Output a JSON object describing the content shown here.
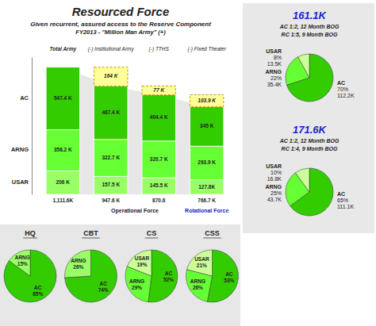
{
  "chart_data": [
    {
      "type": "bar",
      "title": "Resourced Force",
      "subtitle": [
        "Given recurrent, assured access to the Reserve Component",
        "FY2013 - \"Million Man Army\" (+)"
      ],
      "categories": [
        "Total Army",
        "(-) Institutional Army",
        "(-) TTHS",
        "(-) Fixed Theater"
      ],
      "series": [
        {
          "name": "USAR",
          "color": "#99ff66",
          "values": [
            206.0,
            157.5,
            145.5,
            127.8
          ],
          "value_labels": [
            "206 K",
            "157.5 K",
            "145.5 K",
            "127.8K"
          ]
        },
        {
          "name": "ARNG",
          "color": "#66ff33",
          "values": [
            358.2,
            322.7,
            320.7,
            293.9
          ],
          "value_labels": [
            "358.2 K",
            "322.7 K",
            "320.7 K",
            "293.9 K"
          ]
        },
        {
          "name": "AC",
          "color": "#33cc00",
          "values": [
            547.4,
            467.4,
            404.4,
            345.0
          ],
          "value_labels": [
            "547.4 K",
            "467.4 K",
            "404.4 K",
            "345 K"
          ]
        }
      ],
      "removed": [
        null,
        164,
        77,
        103.9
      ],
      "removed_labels": [
        null,
        "164 K",
        "77 K",
        "103.9 K"
      ],
      "removed_color": "#ffff99",
      "totals": [
        1111.6,
        947.6,
        870.6,
        766.7
      ],
      "total_labels": [
        "1,111.6K",
        "947.6 K",
        "870.6",
        "766.7 K"
      ],
      "annotations": [
        "Operational Force",
        "Rotational Force"
      ],
      "ylim": [
        0,
        1200
      ],
      "stacked": true,
      "data_labels": true,
      "tick_labels": false,
      "grid": false
    },
    {
      "type": "pie",
      "title": "161.1K",
      "subtitle": [
        "AC 1:2, 12 Month BOG",
        "RC 1:5, 9 Month BOG"
      ],
      "categories": [
        "AC",
        "ARNG",
        "USAR"
      ],
      "values": [
        70,
        22,
        8
      ],
      "value_labels": [
        "70%",
        "22%",
        "8%"
      ],
      "amount_labels": [
        "112.2K",
        "35.4K",
        "13.5K"
      ],
      "colors": [
        "#33cc00",
        "#66ff33",
        "#ccff99"
      ],
      "data_labels": true
    },
    {
      "type": "pie",
      "title": "171.6K",
      "subtitle": [
        "AC 1:2, 12 Month BOG",
        "RC 1:4, 9 Month BOG"
      ],
      "categories": [
        "AC",
        "ARNG",
        "USAR"
      ],
      "values": [
        65,
        25,
        10
      ],
      "value_labels": [
        "65%",
        "25%",
        "10%"
      ],
      "amount_labels": [
        "111.1K",
        "43.7K",
        "16.8K"
      ],
      "colors": [
        "#33cc00",
        "#66ff33",
        "#ccff99"
      ],
      "data_labels": true
    },
    {
      "type": "pie",
      "title": "HQ",
      "categories": [
        "AC",
        "ARNG"
      ],
      "values": [
        85,
        15
      ],
      "value_labels": [
        "85%",
        "15%"
      ],
      "colors": [
        "#33cc00",
        "#99ff66"
      ],
      "data_labels": true
    },
    {
      "type": "pie",
      "title": "CBT",
      "categories": [
        "AC",
        "ARNG"
      ],
      "values": [
        74,
        26
      ],
      "value_labels": [
        "74%",
        "26%"
      ],
      "colors": [
        "#33cc00",
        "#99ff66"
      ],
      "data_labels": true
    },
    {
      "type": "pie",
      "title": "CS",
      "categories": [
        "AC",
        "ARNG",
        "USAR"
      ],
      "values": [
        52,
        29,
        19
      ],
      "value_labels": [
        "52%",
        "29%",
        "19%"
      ],
      "colors": [
        "#33cc00",
        "#66ff33",
        "#ccff99"
      ],
      "data_labels": true
    },
    {
      "type": "pie",
      "title": "CSS",
      "categories": [
        "AC",
        "ARNG",
        "USAR"
      ],
      "values": [
        53,
        26,
        21
      ],
      "value_labels": [
        "53%",
        "26%",
        "21%"
      ],
      "colors": [
        "#33cc00",
        "#66ff33",
        "#ccff99"
      ],
      "data_labels": true
    }
  ]
}
